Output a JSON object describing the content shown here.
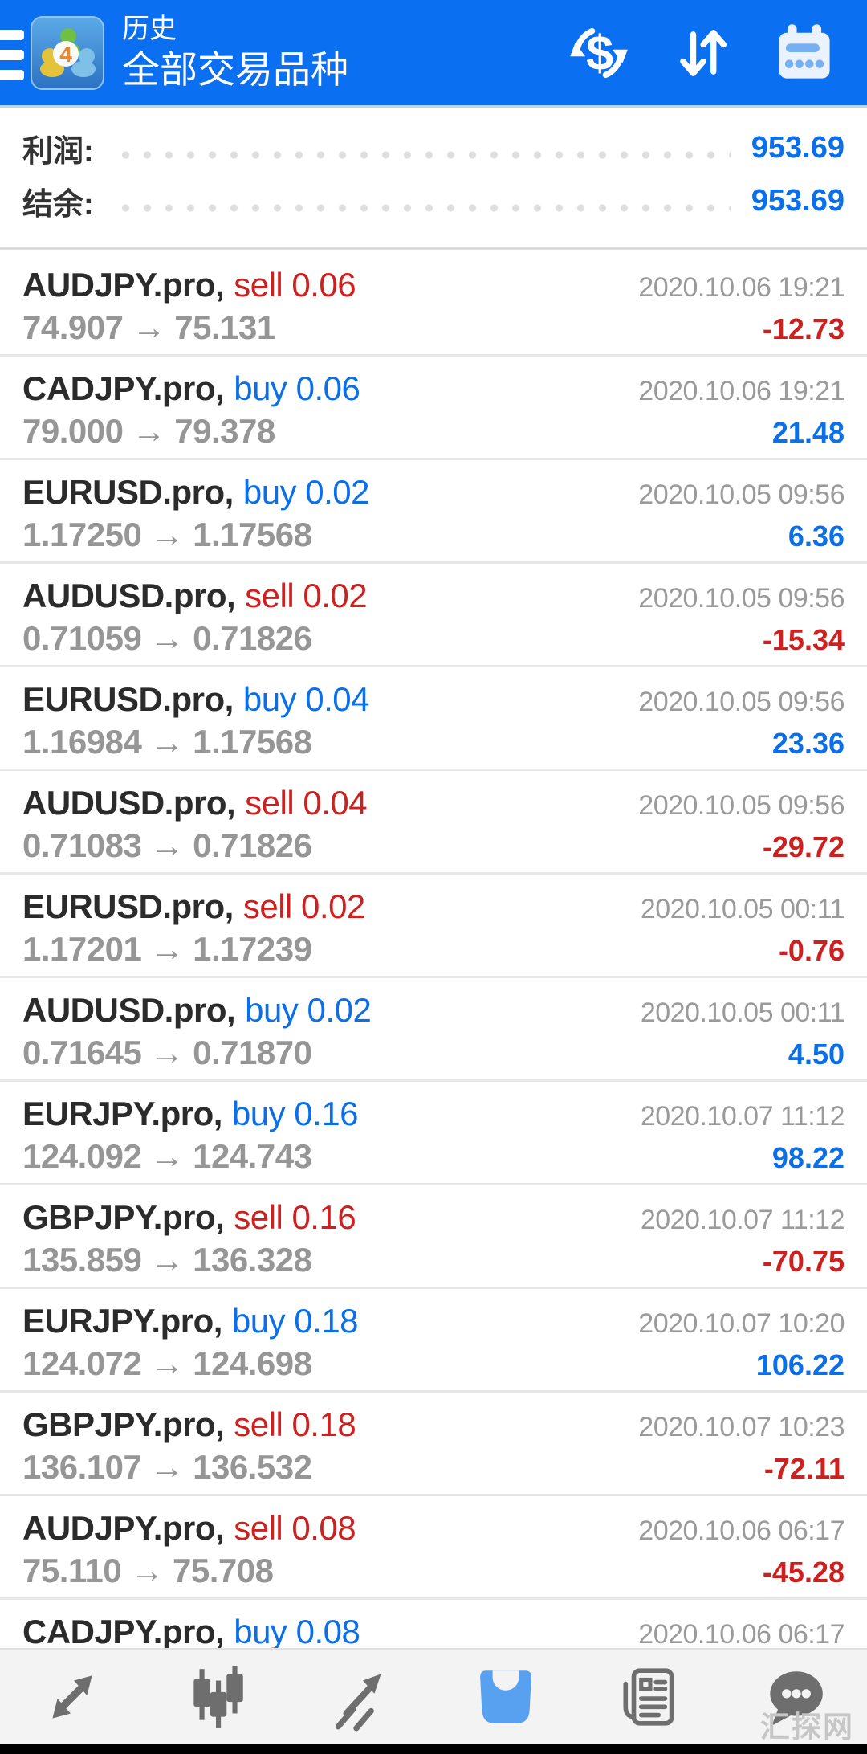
{
  "colors": {
    "header_blue": "#0a6ff0",
    "accent_blue": "#0a6fe8",
    "sell_red": "#cf2020",
    "nav_active_blue": "#58a1f1",
    "nav_icon_gray": "#6e6e6e"
  },
  "header": {
    "title_small": "历史",
    "title_large": "全部交易品种",
    "menu_icon": "hamburger-icon",
    "app_icon_badge": "4",
    "action_icons": [
      "currency-exchange-icon",
      "sort-icon",
      "calendar-icon"
    ]
  },
  "summary": {
    "profit_label": "利润:",
    "profit_value": "953.69",
    "balance_label": "结余:",
    "balance_value": "953.69"
  },
  "trades": [
    {
      "symbol": "AUDJPY.pro,",
      "side": "sell 0.06",
      "side_type": "sell",
      "prices": "74.907 → 75.131",
      "time": "2020.10.06 19:21",
      "profit": "-12.73"
    },
    {
      "symbol": "CADJPY.pro,",
      "side": "buy 0.06",
      "side_type": "buy",
      "prices": "79.000 → 79.378",
      "time": "2020.10.06 19:21",
      "profit": "21.48"
    },
    {
      "symbol": "EURUSD.pro,",
      "side": "buy 0.02",
      "side_type": "buy",
      "prices": "1.17250 → 1.17568",
      "time": "2020.10.05 09:56",
      "profit": "6.36"
    },
    {
      "symbol": "AUDUSD.pro,",
      "side": "sell 0.02",
      "side_type": "sell",
      "prices": "0.71059 → 0.71826",
      "time": "2020.10.05 09:56",
      "profit": "-15.34"
    },
    {
      "symbol": "EURUSD.pro,",
      "side": "buy 0.04",
      "side_type": "buy",
      "prices": "1.16984 → 1.17568",
      "time": "2020.10.05 09:56",
      "profit": "23.36"
    },
    {
      "symbol": "AUDUSD.pro,",
      "side": "sell 0.04",
      "side_type": "sell",
      "prices": "0.71083 → 0.71826",
      "time": "2020.10.05 09:56",
      "profit": "-29.72"
    },
    {
      "symbol": "EURUSD.pro,",
      "side": "sell 0.02",
      "side_type": "sell",
      "prices": "1.17201 → 1.17239",
      "time": "2020.10.05 00:11",
      "profit": "-0.76"
    },
    {
      "symbol": "AUDUSD.pro,",
      "side": "buy 0.02",
      "side_type": "buy",
      "prices": "0.71645 → 0.71870",
      "time": "2020.10.05 00:11",
      "profit": "4.50"
    },
    {
      "symbol": "EURJPY.pro,",
      "side": "buy 0.16",
      "side_type": "buy",
      "prices": "124.092 → 124.743",
      "time": "2020.10.07 11:12",
      "profit": "98.22"
    },
    {
      "symbol": "GBPJPY.pro,",
      "side": "sell 0.16",
      "side_type": "sell",
      "prices": "135.859 → 136.328",
      "time": "2020.10.07 11:12",
      "profit": "-70.75"
    },
    {
      "symbol": "EURJPY.pro,",
      "side": "buy 0.18",
      "side_type": "buy",
      "prices": "124.072 → 124.698",
      "time": "2020.10.07 10:20",
      "profit": "106.22"
    },
    {
      "symbol": "GBPJPY.pro,",
      "side": "sell 0.18",
      "side_type": "sell",
      "prices": "136.107 → 136.532",
      "time": "2020.10.07 10:23",
      "profit": "-72.11"
    },
    {
      "symbol": "AUDJPY.pro,",
      "side": "sell 0.08",
      "side_type": "sell",
      "prices": "75.110 → 75.708",
      "time": "2020.10.06 06:17",
      "profit": "-45.28"
    },
    {
      "symbol": "CADJPY.pro,",
      "side": "buy 0.08",
      "side_type": "buy",
      "prices": "",
      "time": "2020.10.06 06:17",
      "profit": ""
    }
  ],
  "nav": {
    "items": [
      {
        "icon": "quotes-icon",
        "active": false
      },
      {
        "icon": "charts-icon",
        "active": false
      },
      {
        "icon": "trade-icon",
        "active": false
      },
      {
        "icon": "history-icon",
        "active": true
      },
      {
        "icon": "news-icon",
        "active": false
      },
      {
        "icon": "messages-icon",
        "active": false
      }
    ]
  },
  "watermark": "汇探网"
}
